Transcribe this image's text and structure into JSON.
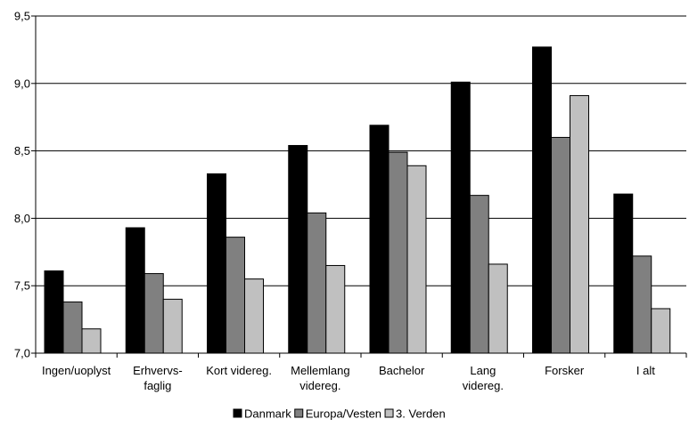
{
  "chart_data": {
    "type": "bar",
    "categories": [
      "Ingen/uoplyst",
      "Erhvervs-\nfaglig",
      "Kort videreg.",
      "Mellemlang\nvidereg.",
      "Bachelor",
      "Lang\nvidereg.",
      "Forsker",
      "I alt"
    ],
    "series": [
      {
        "name": "Danmark",
        "color": "#000000",
        "values": [
          7.61,
          7.93,
          8.33,
          8.54,
          8.69,
          9.01,
          9.27,
          8.18
        ]
      },
      {
        "name": "Europa/Vesten",
        "color": "#808080",
        "values": [
          7.38,
          7.59,
          7.86,
          8.04,
          8.49,
          8.17,
          8.6,
          7.72
        ]
      },
      {
        "name": "3. Verden",
        "color": "#c0c0c0",
        "values": [
          7.18,
          7.4,
          7.55,
          7.65,
          8.39,
          7.66,
          8.91,
          7.33
        ]
      }
    ],
    "ylim": [
      7.0,
      9.5
    ],
    "yticks": [
      "7,0",
      "7,5",
      "8,0",
      "8,5",
      "9,0",
      "9,5"
    ],
    "grid": true,
    "legend_position": "bottom",
    "title": "",
    "xlabel": "",
    "ylabel": ""
  }
}
